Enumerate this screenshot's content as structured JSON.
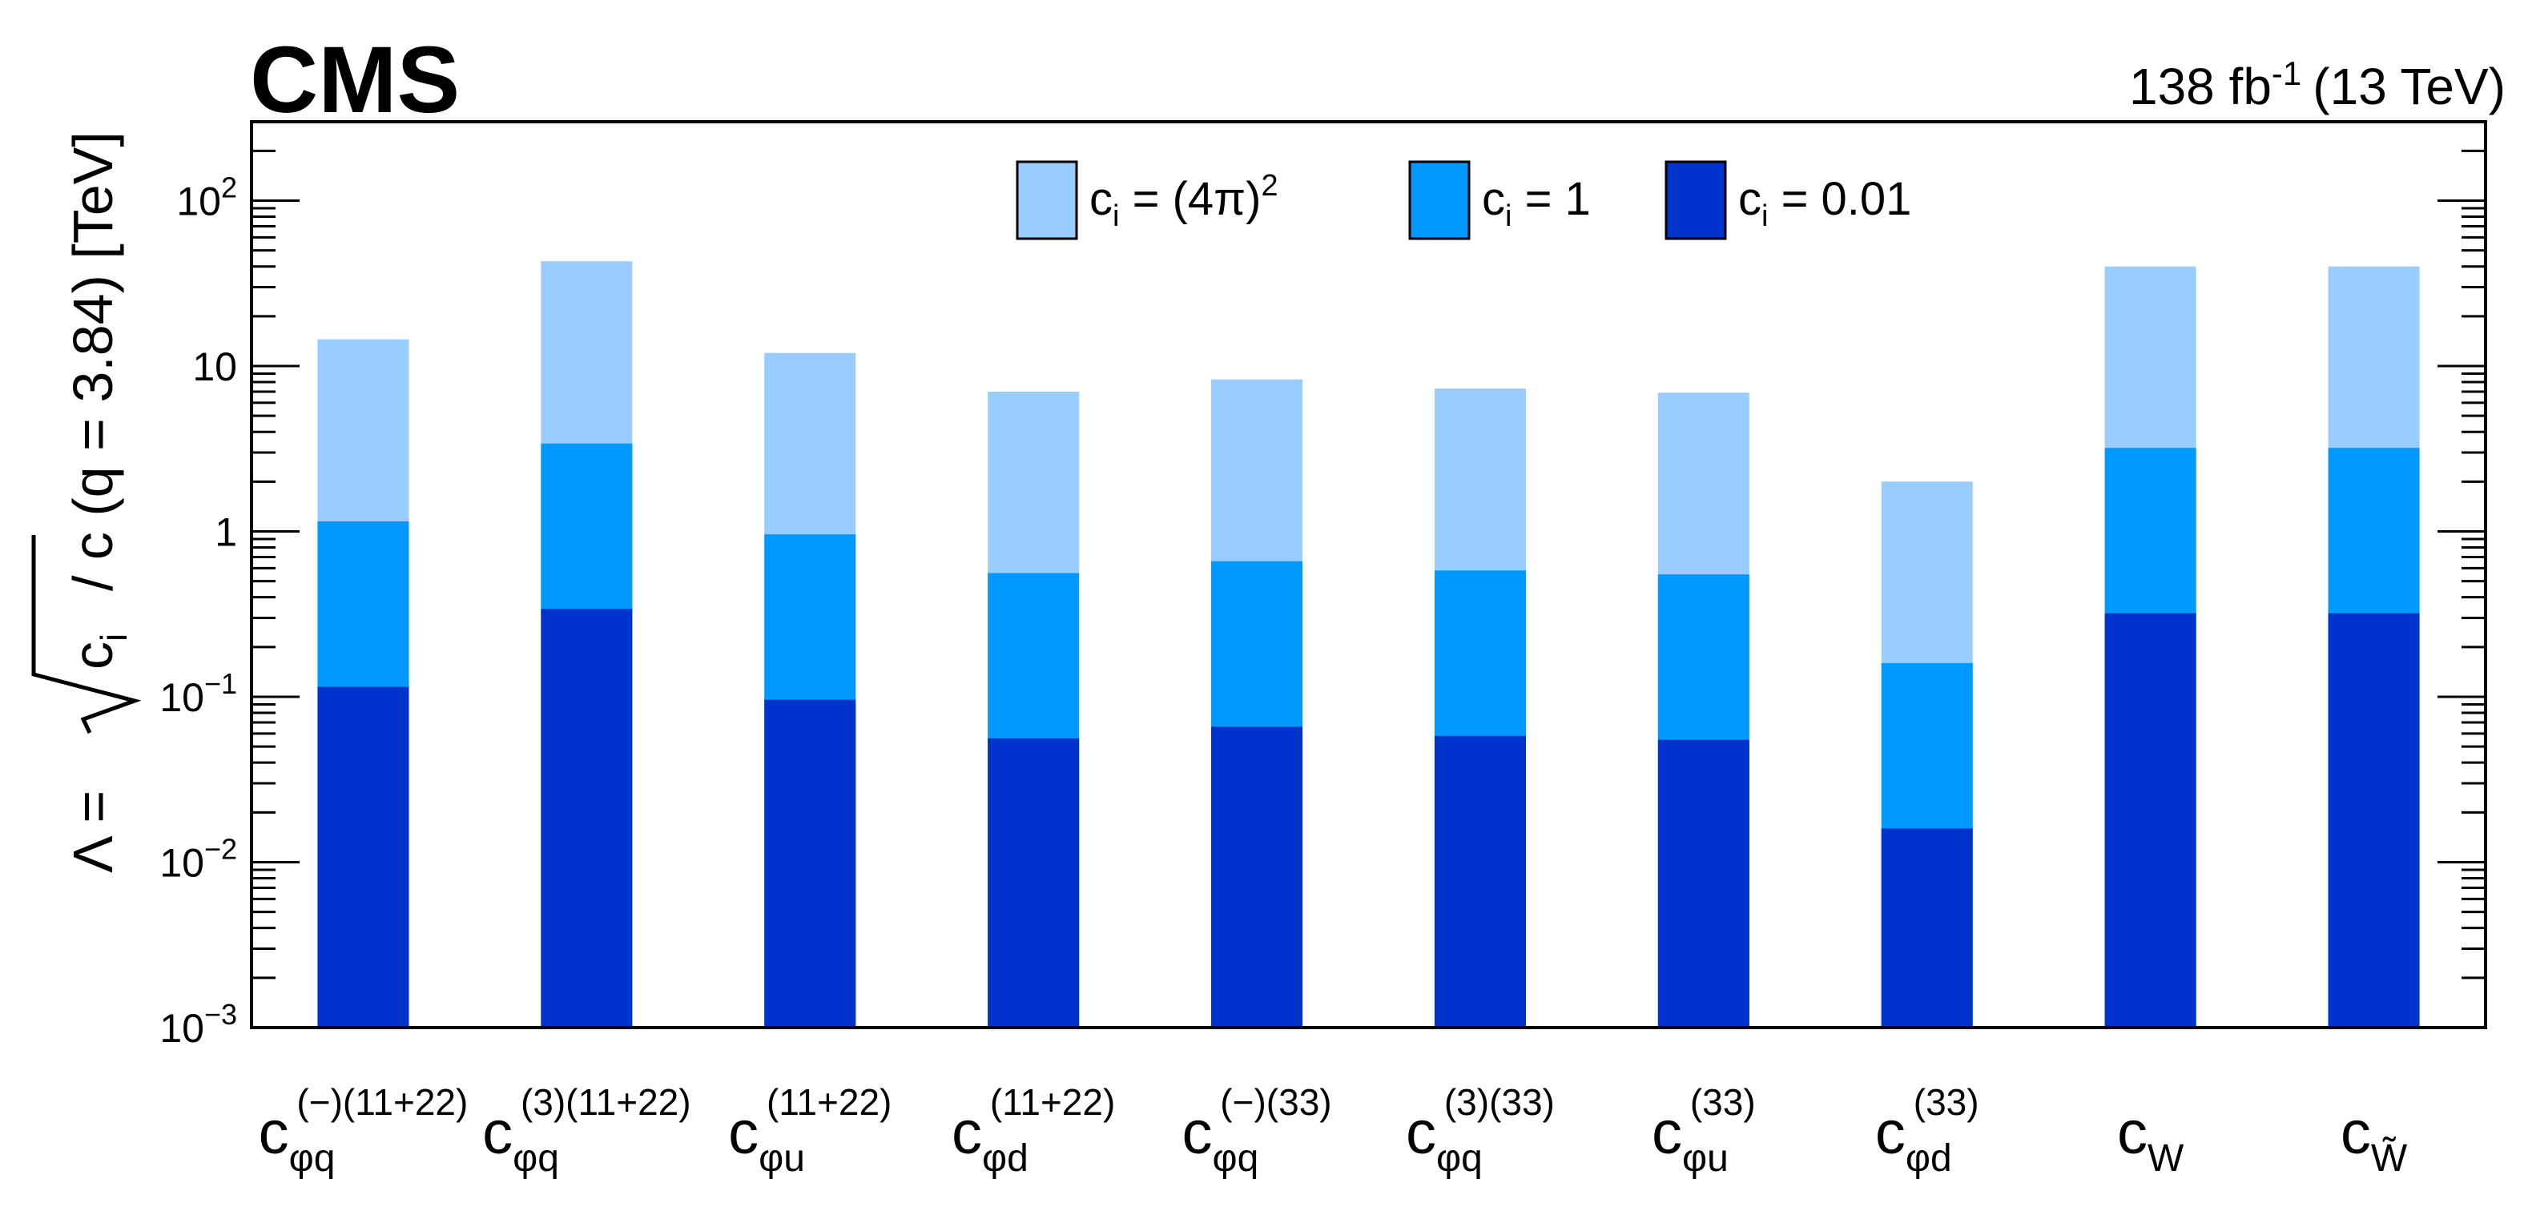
{
  "header": {
    "experiment": "CMS",
    "lumi": "138",
    "lumi_unit": "fb",
    "lumi_exp": "-1",
    "energy": "(13 TeV)"
  },
  "chart_data": {
    "type": "bar",
    "yscale": "log",
    "ylim": [
      0.001,
      300
    ],
    "ylabel": {
      "lambda": "Λ =",
      "ci": "c",
      "ci_sub": "i",
      "rest": "/ c (q = 3.84) [TeV]"
    },
    "yticks": [
      {
        "value": 0.001,
        "base": "10",
        "exp": "−3"
      },
      {
        "value": 0.01,
        "base": "10",
        "exp": "−2"
      },
      {
        "value": 0.1,
        "base": "10",
        "exp": "−1"
      },
      {
        "value": 1,
        "base": "1",
        "exp": ""
      },
      {
        "value": 10,
        "base": "10",
        "exp": ""
      },
      {
        "value": 100,
        "base": "10",
        "exp": "2"
      }
    ],
    "categories": [
      {
        "base": "c",
        "sub": "φq",
        "sup": "(−)(11+22)"
      },
      {
        "base": "c",
        "sub": "φq",
        "sup": "(3)(11+22)"
      },
      {
        "base": "c",
        "sub": "φu",
        "sup": "(11+22)"
      },
      {
        "base": "c",
        "sub": "φd",
        "sup": "(11+22)"
      },
      {
        "base": "c",
        "sub": "φq",
        "sup": "(−)(33)"
      },
      {
        "base": "c",
        "sub": "φq",
        "sup": "(3)(33)"
      },
      {
        "base": "c",
        "sub": "φu",
        "sup": "(33)"
      },
      {
        "base": "c",
        "sub": "φd",
        "sup": "(33)"
      },
      {
        "base": "c",
        "sub": "W",
        "sup": ""
      },
      {
        "base": "c",
        "sub": "W̃",
        "sup": ""
      }
    ],
    "series": [
      {
        "legend_base": "c",
        "legend_sub": "i",
        "legend_rest": " = (4π)",
        "legend_sup": "2",
        "color": "#99ccff",
        "values": [
          14.5,
          43,
          12,
          7,
          8.3,
          7.3,
          6.9,
          2.0,
          40,
          40
        ]
      },
      {
        "legend_base": "c",
        "legend_sub": "i",
        "legend_rest": " = 1",
        "legend_sup": "",
        "color": "#0099ff",
        "values": [
          1.15,
          3.4,
          0.96,
          0.56,
          0.66,
          0.58,
          0.55,
          0.16,
          3.2,
          3.2
        ]
      },
      {
        "legend_base": "c",
        "legend_sub": "i",
        "legend_rest": " = 0.01",
        "legend_sup": "",
        "color": "#0033cc",
        "values": [
          0.115,
          0.34,
          0.096,
          0.056,
          0.066,
          0.058,
          0.055,
          0.016,
          0.32,
          0.32
        ]
      }
    ]
  }
}
